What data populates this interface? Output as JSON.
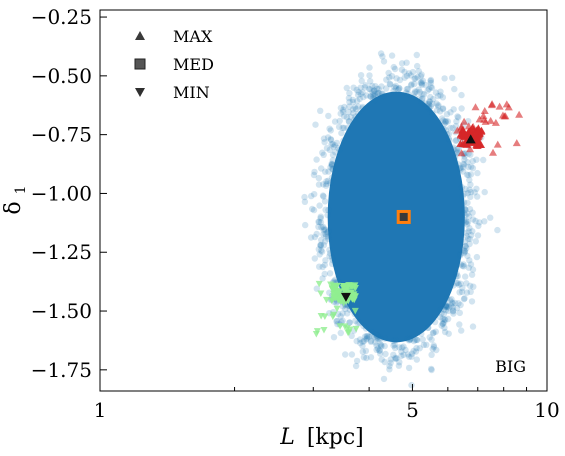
{
  "chart_data": {
    "type": "scatter",
    "xlabel_italic": "L",
    "xlabel_rest": "[kpc]",
    "ylabel_main": "δ",
    "ylabel_sub": "1",
    "x_scale": "log",
    "xlim": [
      1,
      10
    ],
    "ylim": [
      -1.84,
      -0.22
    ],
    "x_ticks": [
      {
        "value": 1,
        "label": "1"
      },
      {
        "value": 5,
        "label": "5"
      },
      {
        "value": 10,
        "label": "10"
      }
    ],
    "y_ticks": [
      {
        "value": -0.25,
        "label": "−0.25"
      },
      {
        "value": -0.5,
        "label": "−0.50"
      },
      {
        "value": -0.75,
        "label": "−0.75"
      },
      {
        "value": -1.0,
        "label": "−1.00"
      },
      {
        "value": -1.25,
        "label": "−1.25"
      },
      {
        "value": -1.5,
        "label": "−1.50"
      },
      {
        "value": -1.75,
        "label": "−1.75"
      }
    ],
    "annotation": "BIG",
    "annotation_position": "bottom-right",
    "grid": false,
    "legend_position": "top-left",
    "cloud": {
      "center_x": 4.6,
      "center_y": -1.1,
      "x_range": [
        3.0,
        7.1
      ],
      "y_range": [
        -1.73,
        -0.43
      ],
      "color": "#1f77b4"
    },
    "series": [
      {
        "name": "MAX",
        "marker": "triangle-up",
        "color": "#3a3a3a",
        "scatter_color": "#d62728",
        "marker_point": {
          "x": 6.75,
          "y": -0.77
        },
        "scatter_x_range": [
          6.3,
          8.7
        ],
        "scatter_y_range": [
          -0.83,
          -0.62
        ]
      },
      {
        "name": "MED",
        "marker": "square",
        "color": "#555555",
        "scatter_color": "#ff7f0e",
        "marker_point": {
          "x": 4.78,
          "y": -1.1
        },
        "scatter_x_range": [
          4.72,
          4.84
        ],
        "scatter_y_range": [
          -1.12,
          -1.08
        ]
      },
      {
        "name": "MIN",
        "marker": "triangle-down",
        "color": "#2f2f2f",
        "scatter_color": "#90ee90",
        "marker_point": {
          "x": 3.55,
          "y": -1.44
        },
        "scatter_x_range": [
          3.0,
          3.75
        ],
        "scatter_y_range": [
          -1.6,
          -1.38
        ]
      }
    ]
  }
}
